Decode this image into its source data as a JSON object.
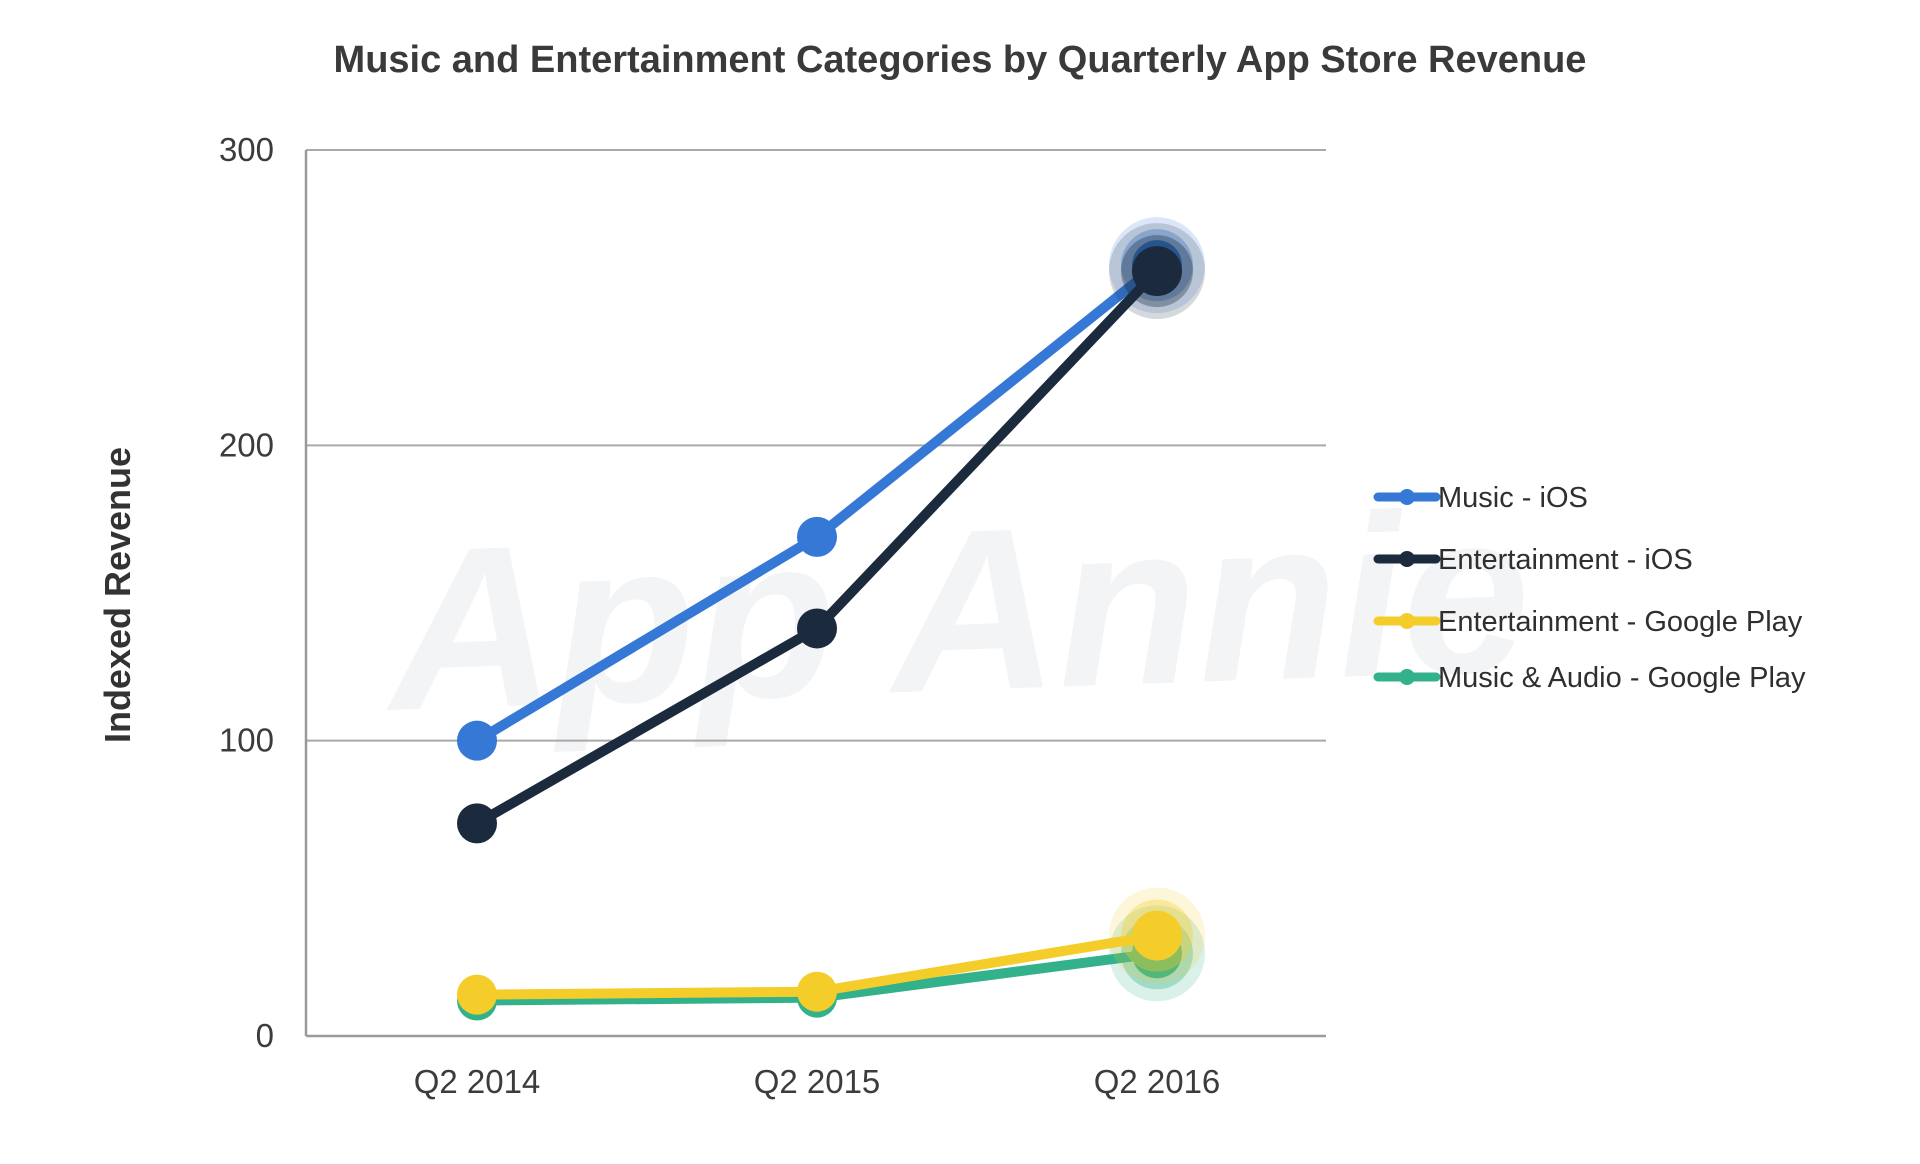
{
  "watermark": "App Annie",
  "chart_data": {
    "type": "line",
    "title": "Music and Entertainment Categories by Quarterly App Store Revenue",
    "xlabel": "",
    "ylabel": "Indexed Revenue",
    "categories": [
      "Q2 2014",
      "Q2 2015",
      "Q2 2016"
    ],
    "ylim": [
      0,
      300
    ],
    "yticks": [
      0,
      100,
      200,
      300
    ],
    "grid": true,
    "legend_position": "right",
    "series": [
      {
        "name": "Music - iOS",
        "color": "#3578d6",
        "values": [
          100,
          169,
          261
        ]
      },
      {
        "name": "Entertainment - iOS",
        "color": "#1b2a3d",
        "values": [
          72,
          138,
          259
        ]
      },
      {
        "name": "Entertainment - Google Play",
        "color": "#f4cd2a",
        "values": [
          14,
          15,
          34
        ]
      },
      {
        "name": "Music & Audio - Google Play",
        "color": "#32b18b",
        "values": [
          12,
          13,
          28
        ]
      }
    ],
    "draw_order": [
      3,
      2,
      0,
      1
    ]
  }
}
